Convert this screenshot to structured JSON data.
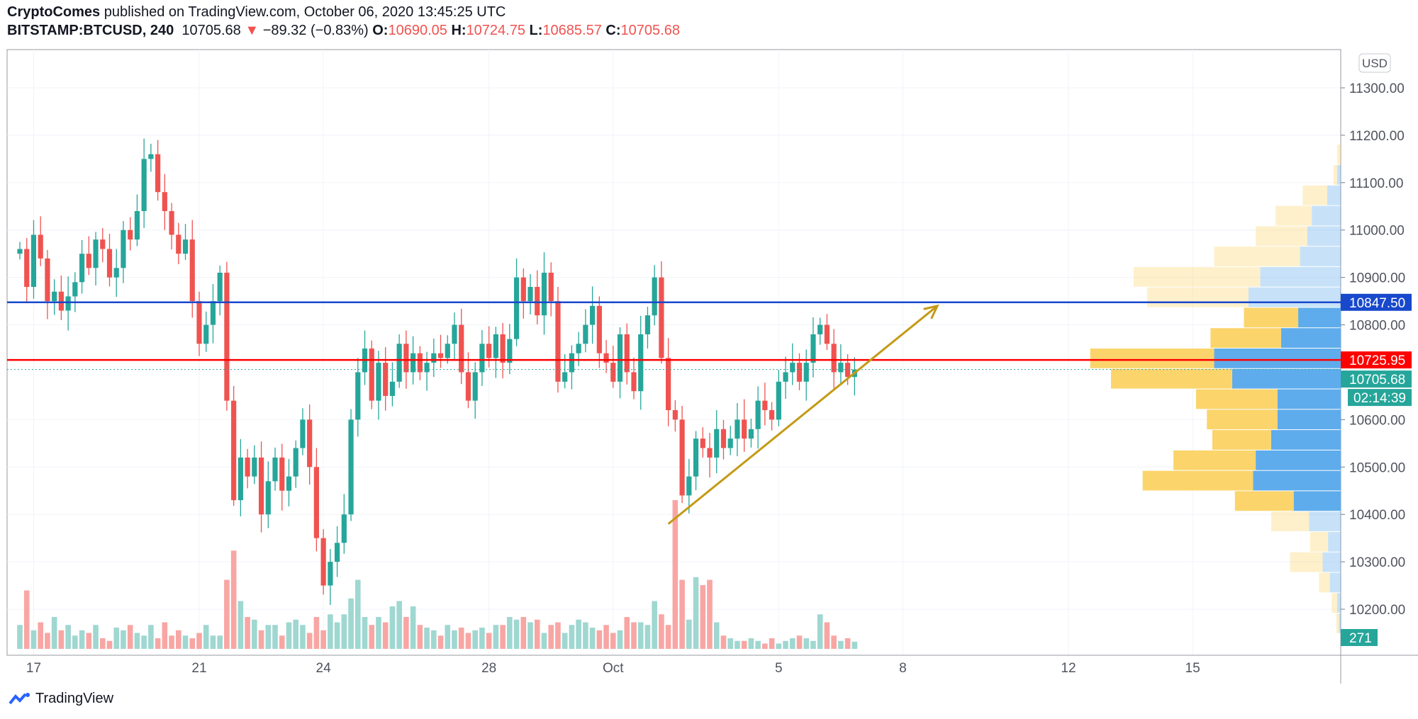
{
  "header": {
    "author": "CryptoComes",
    "published": "published on TradingView.com, October 06, 2020 13:45:25 UTC",
    "symbol": "BITSTAMP:BTCUSD, 240",
    "last": "10705.68",
    "change": "−89.32 (−0.83%)",
    "o_label": "O:",
    "o": "10690.05",
    "h_label": "H:",
    "h": "10724.75",
    "l_label": "L:",
    "l": "10685.57",
    "c_label": "C:",
    "c": "10705.68"
  },
  "footer": {
    "brand": "TradingView"
  },
  "colors": {
    "up": "#26a69a",
    "down": "#ef5350",
    "blue_line": "#1848cc",
    "red_line": "#ff0000",
    "trend": "#c49a16",
    "vp_up": "#fbd46b",
    "vp_down": "#5eacec"
  },
  "chart_data": {
    "type": "candlestick",
    "title": "BITSTAMP:BTCUSD, 240",
    "currency": "USD",
    "ylim": [
      10100,
      11400
    ],
    "y_ticks": [
      "11300.00",
      "11200.00",
      "11100.00",
      "11000.00",
      "10900.00",
      "10800.00",
      "10600.00",
      "10500.00",
      "10400.00",
      "10300.00",
      "10200.00"
    ],
    "x_ticks": [
      {
        "label": "17",
        "i": 2
      },
      {
        "label": "21",
        "i": 26
      },
      {
        "label": "24",
        "i": 44
      },
      {
        "label": "28",
        "i": 68
      },
      {
        "label": "Oct",
        "i": 86
      },
      {
        "label": "5",
        "i": 110
      },
      {
        "label": "8",
        "i": 128
      },
      {
        "label": "12",
        "i": 152
      },
      {
        "label": "15",
        "i": 170
      }
    ],
    "first_open": 10950,
    "closes": [
      10960,
      10880,
      10990,
      10940,
      10850,
      10870,
      10830,
      10860,
      10890,
      10950,
      10920,
      10980,
      10960,
      10900,
      10920,
      11000,
      10980,
      11040,
      11150,
      11160,
      11080,
      11040,
      10990,
      10950,
      10980,
      10850,
      10760,
      10800,
      10850,
      10910,
      10640,
      10430,
      10520,
      10480,
      10520,
      10400,
      10470,
      10520,
      10450,
      10480,
      10540,
      10600,
      10500,
      10350,
      10250,
      10300,
      10340,
      10400,
      10600,
      10700,
      10750,
      10640,
      10720,
      10650,
      10680,
      10760,
      10700,
      10740,
      10700,
      10720,
      10740,
      10730,
      10760,
      10800,
      10700,
      10640,
      10700,
      10760,
      10730,
      10780,
      10720,
      10770,
      10900,
      10850,
      10880,
      10820,
      10910,
      10850,
      10680,
      10700,
      10740,
      10760,
      10800,
      10840,
      10740,
      10720,
      10680,
      10780,
      10700,
      10660,
      10780,
      10820,
      10900,
      10730,
      10620,
      10600,
      10440,
      10480,
      10560,
      10540,
      10520,
      10580,
      10540,
      10560,
      10600,
      10560,
      10580,
      10640,
      10620,
      10600,
      10680,
      10700,
      10720,
      10680,
      10720,
      10780,
      10800,
      10760,
      10700,
      10720,
      10690,
      10705.68
    ],
    "volume": [
      900,
      2200,
      700,
      1000,
      600,
      1200,
      700,
      900,
      500,
      700,
      600,
      900,
      400,
      300,
      800,
      700,
      900,
      600,
      500,
      900,
      400,
      1000,
      500,
      700,
      500,
      400,
      600,
      900,
      500,
      500,
      2600,
      3700,
      1800,
      1200,
      1100,
      700,
      900,
      900,
      500,
      1000,
      1100,
      900,
      600,
      1200,
      700,
      1300,
      1000,
      1300,
      1900,
      2600,
      1200,
      900,
      1200,
      1000,
      1600,
      1800,
      1200,
      1600,
      900,
      800,
      700,
      500,
      900,
      700,
      800,
      600,
      700,
      800,
      600,
      900,
      900,
      1200,
      1100,
      1200,
      1000,
      1100,
      600,
      900,
      1000,
      600,
      900,
      1100,
      1000,
      800,
      700,
      900,
      600,
      700,
      1200,
      1000,
      1000,
      900,
      1800,
      1300,
      900,
      5600,
      2600,
      1100,
      2700,
      2400,
      2600,
      1000,
      500,
      400,
      300,
      300,
      400,
      300,
      200,
      400,
      200,
      300,
      400,
      500,
      400,
      300,
      1300,
      1000,
      500,
      300,
      400,
      271
    ],
    "volume_label": "271",
    "horizontal_lines": [
      {
        "name": "resistance",
        "price": 10847.5,
        "label": "10847.50",
        "color": "#1848cc"
      },
      {
        "name": "support",
        "price": 10725.95,
        "label": "10725.95",
        "color": "#ff0000"
      }
    ],
    "last_price": {
      "price": 10705.68,
      "label": "10705.68",
      "countdown": "02:14:39"
    },
    "trend_arrow": {
      "from": [
        94,
        10380
      ],
      "to": [
        133,
        10840
      ]
    },
    "volume_profile": {
      "top_price": 11180,
      "row_size": 43,
      "value_area_rows": [
        8,
        17
      ],
      "rows": [
        [
          4,
          0
        ],
        [
          4,
          4
        ],
        [
          27,
          15
        ],
        [
          40,
          32
        ],
        [
          57,
          37
        ],
        [
          95,
          45
        ],
        [
          140,
          89
        ],
        [
          112,
          102
        ],
        [
          60,
          47
        ],
        [
          78,
          66
        ],
        [
          137,
          140
        ],
        [
          134,
          120
        ],
        [
          90,
          70
        ],
        [
          78,
          70
        ],
        [
          65,
          77
        ],
        [
          91,
          94
        ],
        [
          122,
          97
        ],
        [
          65,
          52
        ],
        [
          42,
          35
        ],
        [
          20,
          14
        ],
        [
          36,
          20
        ],
        [
          12,
          12
        ],
        [
          6,
          4
        ],
        [
          3,
          2
        ]
      ]
    }
  }
}
